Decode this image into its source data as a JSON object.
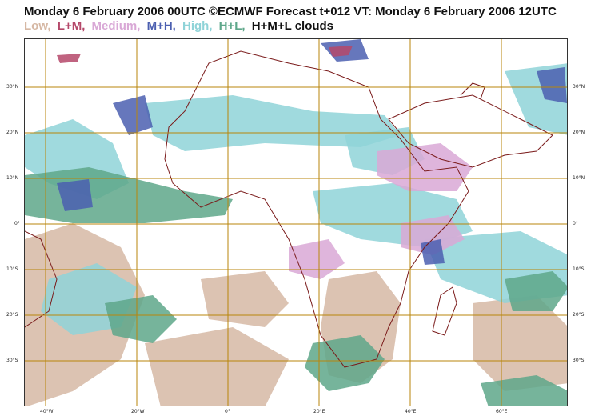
{
  "title": "Monday 6 February 2006 00UTC ©ECMWF Forecast t+012 VT: Monday 6 February 2006 12UTC",
  "legend": [
    {
      "text": "Low,",
      "color": "#d6b8a4"
    },
    {
      "text": "L+M,",
      "color": "#b5486a"
    },
    {
      "text": "Medium,",
      "color": "#d9a8d6"
    },
    {
      "text": "M+H,",
      "color": "#4b5fb0"
    },
    {
      "text": "High,",
      "color": "#8fd3d8"
    },
    {
      "text": "H+L,",
      "color": "#5ea78a"
    },
    {
      "text": "H+M+L clouds",
      "color": "#111111"
    }
  ],
  "lon_labels_bottom": [
    "40°W",
    "20°W",
    "0°",
    "20°E",
    "40°E",
    "60°E"
  ],
  "lat_labels_left": [
    "30°N",
    "20°N",
    "10°N",
    "0°",
    "10°S",
    "20°S",
    "30°S"
  ],
  "lat_labels_right": [
    "30°N",
    "20°N",
    "10°N",
    "0°",
    "10°S",
    "20°S",
    "30°S"
  ],
  "colors": {
    "gridline": "#b8860b",
    "coastline": "#7a1a1a",
    "low": "#d6b8a4",
    "high": "#8fd3d8",
    "high_low": "#5ea78a",
    "medium": "#d9a8d6",
    "medium_high": "#4b5fb0"
  }
}
